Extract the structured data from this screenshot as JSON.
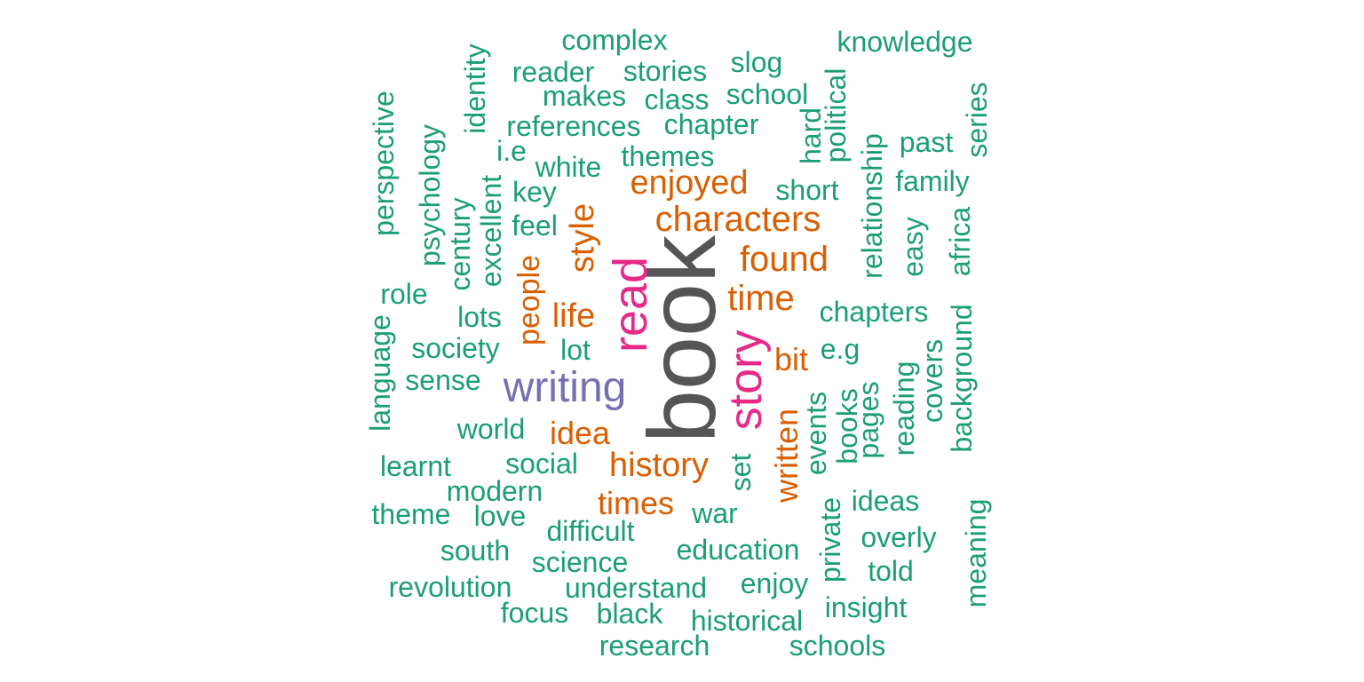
{
  "palette": {
    "green": "#1b9e77",
    "orange": "#d95f02",
    "purple": "#7570b3",
    "magenta": "#e7298a",
    "gray": "#555555"
  },
  "words": [
    {
      "text": "book",
      "color": "gray",
      "vertical": true
    },
    {
      "text": "read",
      "color": "magenta",
      "vertical": true
    },
    {
      "text": "story",
      "color": "magenta",
      "vertical": true
    },
    {
      "text": "writing",
      "color": "purple",
      "vertical": false
    },
    {
      "text": "characters",
      "color": "orange",
      "vertical": false
    },
    {
      "text": "time",
      "color": "orange",
      "vertical": false
    },
    {
      "text": "found",
      "color": "orange",
      "vertical": false
    },
    {
      "text": "enjoyed",
      "color": "orange",
      "vertical": false
    },
    {
      "text": "history",
      "color": "orange",
      "vertical": false
    },
    {
      "text": "life",
      "color": "orange",
      "vertical": false
    },
    {
      "text": "style",
      "color": "orange",
      "vertical": true
    },
    {
      "text": "people",
      "color": "orange",
      "vertical": true
    },
    {
      "text": "written",
      "color": "orange",
      "vertical": true
    },
    {
      "text": "idea",
      "color": "orange",
      "vertical": false
    },
    {
      "text": "bit",
      "color": "orange",
      "vertical": false
    },
    {
      "text": "times",
      "color": "orange",
      "vertical": false
    },
    {
      "text": "complex",
      "color": "green",
      "vertical": false
    },
    {
      "text": "knowledge",
      "color": "green",
      "vertical": false
    },
    {
      "text": "reader",
      "color": "green",
      "vertical": false
    },
    {
      "text": "stories",
      "color": "green",
      "vertical": false
    },
    {
      "text": "slog",
      "color": "green",
      "vertical": false
    },
    {
      "text": "makes",
      "color": "green",
      "vertical": false
    },
    {
      "text": "class",
      "color": "green",
      "vertical": false
    },
    {
      "text": "school",
      "color": "green",
      "vertical": false
    },
    {
      "text": "identity",
      "color": "green",
      "vertical": true
    },
    {
      "text": "political",
      "color": "green",
      "vertical": true
    },
    {
      "text": "series",
      "color": "green",
      "vertical": true
    },
    {
      "text": "references",
      "color": "green",
      "vertical": false
    },
    {
      "text": "chapter",
      "color": "green",
      "vertical": false
    },
    {
      "text": "hard",
      "color": "green",
      "vertical": true
    },
    {
      "text": "past",
      "color": "green",
      "vertical": false
    },
    {
      "text": "perspective",
      "color": "green",
      "vertical": true
    },
    {
      "text": "psychology",
      "color": "green",
      "vertical": true
    },
    {
      "text": "i.e",
      "color": "green",
      "vertical": false
    },
    {
      "text": "white",
      "color": "green",
      "vertical": false
    },
    {
      "text": "themes",
      "color": "green",
      "vertical": false
    },
    {
      "text": "relationship",
      "color": "green",
      "vertical": true
    },
    {
      "text": "family",
      "color": "green",
      "vertical": false
    },
    {
      "text": "key",
      "color": "green",
      "vertical": false
    },
    {
      "text": "short",
      "color": "green",
      "vertical": false
    },
    {
      "text": "excellent",
      "color": "green",
      "vertical": true
    },
    {
      "text": "century",
      "color": "green",
      "vertical": true
    },
    {
      "text": "feel",
      "color": "green",
      "vertical": false
    },
    {
      "text": "easy",
      "color": "green",
      "vertical": true
    },
    {
      "text": "africa",
      "color": "green",
      "vertical": true
    },
    {
      "text": "role",
      "color": "green",
      "vertical": false
    },
    {
      "text": "chapters",
      "color": "green",
      "vertical": false
    },
    {
      "text": "lots",
      "color": "green",
      "vertical": false
    },
    {
      "text": "language",
      "color": "green",
      "vertical": true
    },
    {
      "text": "society",
      "color": "green",
      "vertical": false
    },
    {
      "text": "lot",
      "color": "green",
      "vertical": false
    },
    {
      "text": "e.g",
      "color": "green",
      "vertical": false
    },
    {
      "text": "background",
      "color": "green",
      "vertical": true
    },
    {
      "text": "covers",
      "color": "green",
      "vertical": true
    },
    {
      "text": "sense",
      "color": "green",
      "vertical": false
    },
    {
      "text": "reading",
      "color": "green",
      "vertical": true
    },
    {
      "text": "pages",
      "color": "green",
      "vertical": true
    },
    {
      "text": "books",
      "color": "green",
      "vertical": true
    },
    {
      "text": "events",
      "color": "green",
      "vertical": true
    },
    {
      "text": "world",
      "color": "green",
      "vertical": false
    },
    {
      "text": "learnt",
      "color": "green",
      "vertical": false
    },
    {
      "text": "social",
      "color": "green",
      "vertical": false
    },
    {
      "text": "set",
      "color": "green",
      "vertical": true
    },
    {
      "text": "modern",
      "color": "green",
      "vertical": false
    },
    {
      "text": "ideas",
      "color": "green",
      "vertical": false
    },
    {
      "text": "theme",
      "color": "green",
      "vertical": false
    },
    {
      "text": "love",
      "color": "green",
      "vertical": false
    },
    {
      "text": "war",
      "color": "green",
      "vertical": false
    },
    {
      "text": "meaning",
      "color": "green",
      "vertical": true
    },
    {
      "text": "private",
      "color": "green",
      "vertical": true
    },
    {
      "text": "difficult",
      "color": "green",
      "vertical": false
    },
    {
      "text": "overly",
      "color": "green",
      "vertical": false
    },
    {
      "text": "south",
      "color": "green",
      "vertical": false
    },
    {
      "text": "education",
      "color": "green",
      "vertical": false
    },
    {
      "text": "science",
      "color": "green",
      "vertical": false
    },
    {
      "text": "told",
      "color": "green",
      "vertical": false
    },
    {
      "text": "revolution",
      "color": "green",
      "vertical": false
    },
    {
      "text": "understand",
      "color": "green",
      "vertical": false
    },
    {
      "text": "enjoy",
      "color": "green",
      "vertical": false
    },
    {
      "text": "insight",
      "color": "green",
      "vertical": false
    },
    {
      "text": "focus",
      "color": "green",
      "vertical": false
    },
    {
      "text": "black",
      "color": "green",
      "vertical": false
    },
    {
      "text": "historical",
      "color": "green",
      "vertical": false
    },
    {
      "text": "research",
      "color": "green",
      "vertical": false
    },
    {
      "text": "schools",
      "color": "green",
      "vertical": false
    }
  ]
}
